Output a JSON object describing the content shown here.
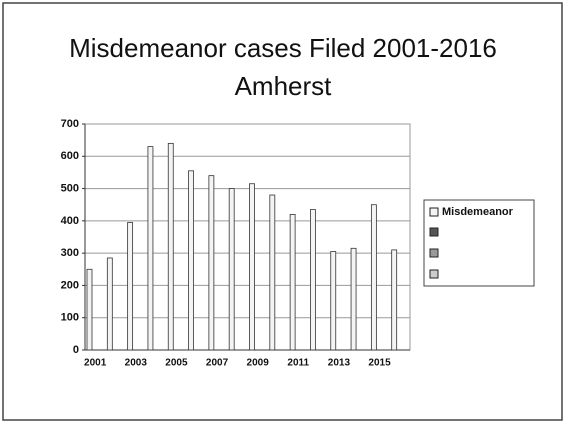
{
  "chart_data": {
    "type": "bar",
    "title": "Misdemeanor cases Filed 2001-2016",
    "subtitle": "Amherst",
    "categories": [
      "2001",
      null,
      "2003",
      null,
      "2005",
      null,
      "2007",
      null,
      "2009",
      null,
      "2011",
      null,
      "2013",
      null,
      "2015",
      null
    ],
    "series": [
      {
        "name": "Misdemeanor",
        "color": "#f4f4f4",
        "values": [
          250,
          285,
          395,
          630,
          640,
          555,
          540,
          500,
          515,
          480,
          420,
          435,
          305,
          315,
          450,
          310
        ]
      }
    ],
    "ylim": [
      0,
      700
    ],
    "yticks": [
      0,
      100,
      200,
      300,
      400,
      500,
      600,
      700
    ],
    "grid": true,
    "legend": "right"
  }
}
